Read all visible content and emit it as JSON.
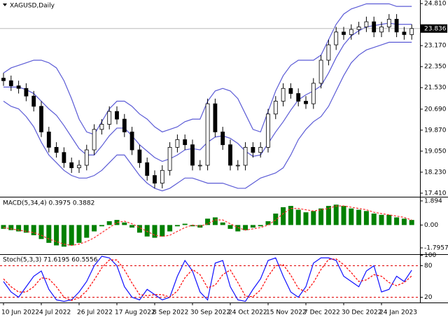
{
  "chart_data": [
    {
      "type": "candlestick",
      "title": "XAGUSD,Daily",
      "open": [
        21.9,
        21.8,
        21.6,
        21.5,
        21.2,
        20.8,
        19.8,
        19.2,
        19.0,
        18.6,
        18.4,
        18.5,
        19.1,
        19.9,
        20.1,
        20.6,
        20.3,
        19.8,
        19.1,
        18.6,
        18.1,
        17.8,
        18.3,
        19.2,
        19.5,
        19.3,
        18.5,
        18.5,
        20.9,
        19.8,
        19.3,
        18.5,
        18.5,
        19.2,
        19.0,
        19.2,
        20.5,
        21.0,
        21.5,
        21.3,
        21.0,
        20.9,
        21.7,
        22.6,
        23.2,
        23.7,
        23.6,
        23.8,
        23.9,
        24.1,
        23.7,
        23.9,
        24.2,
        23.7,
        23.6
      ],
      "high": [
        22.1,
        22.0,
        21.8,
        21.7,
        21.4,
        21.0,
        20.0,
        19.4,
        19.2,
        18.8,
        18.7,
        19.3,
        20.1,
        20.3,
        20.8,
        20.8,
        20.5,
        20.0,
        19.3,
        18.8,
        18.3,
        18.5,
        19.4,
        19.7,
        19.7,
        19.5,
        18.7,
        21.1,
        21.1,
        20.0,
        19.5,
        18.7,
        19.4,
        19.4,
        19.4,
        20.7,
        21.2,
        21.7,
        21.7,
        21.5,
        21.2,
        21.9,
        22.8,
        23.4,
        23.9,
        23.9,
        24.0,
        24.1,
        24.3,
        24.3,
        24.1,
        24.4,
        24.4,
        23.9,
        24.0
      ],
      "low": [
        21.6,
        21.4,
        21.3,
        21.0,
        20.6,
        19.6,
        19.0,
        18.8,
        18.4,
        18.2,
        18.2,
        18.3,
        18.9,
        19.7,
        19.9,
        20.1,
        19.6,
        18.9,
        18.4,
        17.9,
        17.6,
        17.6,
        18.1,
        19.0,
        19.1,
        18.3,
        18.3,
        18.3,
        19.6,
        19.1,
        18.3,
        18.3,
        18.3,
        18.8,
        18.8,
        19.0,
        20.3,
        20.8,
        21.1,
        20.8,
        20.7,
        20.7,
        21.5,
        22.4,
        23.0,
        23.4,
        23.4,
        23.6,
        23.7,
        23.5,
        23.5,
        23.7,
        23.5,
        23.4,
        23.4
      ],
      "close": [
        21.8,
        21.6,
        21.5,
        21.2,
        20.8,
        19.8,
        19.2,
        19.0,
        18.6,
        18.4,
        18.5,
        19.1,
        19.9,
        20.1,
        20.6,
        20.3,
        19.8,
        19.1,
        18.6,
        18.1,
        17.8,
        18.3,
        19.2,
        19.5,
        19.3,
        18.5,
        18.5,
        20.9,
        19.8,
        19.3,
        18.5,
        18.5,
        19.2,
        19.0,
        19.2,
        20.5,
        21.0,
        21.5,
        21.3,
        21.0,
        20.9,
        21.7,
        22.6,
        23.2,
        23.7,
        23.6,
        23.8,
        23.9,
        24.1,
        23.7,
        23.9,
        24.2,
        23.7,
        23.6,
        23.836
      ],
      "bands": {
        "color": "#5b5bd6",
        "upper": [
          22.1,
          22.3,
          22.4,
          22.5,
          22.6,
          22.6,
          22.5,
          22.3,
          21.8,
          21.1,
          20.3,
          19.8,
          19.7,
          20.2,
          20.7,
          21.0,
          21.0,
          20.8,
          20.5,
          20.3,
          20.0,
          19.8,
          19.9,
          20.0,
          20.2,
          20.3,
          20.3,
          21.0,
          21.4,
          21.5,
          21.4,
          21.1,
          20.5,
          19.9,
          19.8,
          20.6,
          21.4,
          22.0,
          22.4,
          22.6,
          22.6,
          22.6,
          22.8,
          23.4,
          24.0,
          24.4,
          24.6,
          24.7,
          24.8,
          24.8,
          24.8,
          24.8,
          24.7,
          24.7,
          24.7
        ],
        "middle": [
          21.55,
          21.55,
          21.55,
          21.45,
          21.3,
          21.0,
          20.7,
          20.45,
          20.05,
          19.6,
          19.15,
          18.9,
          18.9,
          19.25,
          19.65,
          19.95,
          19.95,
          19.65,
          19.3,
          19.05,
          18.8,
          18.65,
          18.75,
          18.9,
          19.1,
          19.15,
          19.1,
          19.4,
          19.6,
          19.65,
          19.55,
          19.35,
          19.05,
          18.85,
          18.9,
          19.35,
          19.8,
          20.2,
          20.65,
          21.05,
          21.25,
          21.4,
          21.6,
          22.1,
          22.7,
          23.2,
          23.55,
          23.75,
          23.9,
          23.95,
          24.0,
          24.05,
          24.0,
          24.0,
          24.0
        ],
        "lower": [
          21.0,
          20.8,
          20.7,
          20.4,
          20.0,
          19.4,
          18.9,
          18.6,
          18.3,
          18.1,
          18.0,
          18.0,
          18.1,
          18.3,
          18.6,
          18.9,
          18.9,
          18.5,
          18.1,
          17.8,
          17.6,
          17.5,
          17.6,
          17.8,
          18.0,
          18.0,
          17.9,
          17.8,
          17.8,
          17.8,
          17.7,
          17.6,
          17.6,
          17.8,
          18.0,
          18.1,
          18.2,
          18.4,
          18.9,
          19.5,
          19.9,
          20.2,
          20.4,
          20.8,
          21.4,
          22.0,
          22.5,
          22.8,
          23.0,
          23.1,
          23.2,
          23.3,
          23.3,
          23.3,
          23.3
        ]
      },
      "ylim": [
        17.27,
        24.95
      ],
      "yticks": [
        {
          "value": 24.81,
          "label": "24.810"
        },
        {
          "value": 23.17,
          "label": "23.170"
        },
        {
          "value": 22.35,
          "label": "22.350"
        },
        {
          "value": 21.53,
          "label": "21.530"
        },
        {
          "value": 20.69,
          "label": "20.690"
        },
        {
          "value": 19.87,
          "label": "19.870"
        },
        {
          "value": 19.05,
          "label": "19.050"
        },
        {
          "value": 18.23,
          "label": "18.230"
        },
        {
          "value": 17.41,
          "label": "17.410"
        }
      ]
    },
    {
      "type": "bar",
      "title": "MACD(5,34,4) 0.3975 0.3882",
      "color": "#008000",
      "values": [
        -0.3,
        -0.4,
        -0.5,
        -0.6,
        -0.8,
        -1.1,
        -1.4,
        -1.6,
        -1.7,
        -1.6,
        -1.4,
        -1.0,
        -0.5,
        -0.1,
        0.3,
        0.4,
        0.2,
        -0.2,
        -0.6,
        -0.9,
        -1.0,
        -0.9,
        -0.5,
        -0.1,
        0.1,
        -0.1,
        -0.2,
        0.5,
        0.6,
        0.2,
        -0.3,
        -0.5,
        -0.4,
        -0.2,
        -0.1,
        0.3,
        0.9,
        1.4,
        1.5,
        1.2,
        1.0,
        1.1,
        1.3,
        1.5,
        1.6,
        1.5,
        1.3,
        1.2,
        1.1,
        0.9,
        0.8,
        0.8,
        0.6,
        0.5,
        0.3975
      ],
      "signal": [
        -0.2,
        -0.3,
        -0.4,
        -0.5,
        -0.6,
        -0.8,
        -1.1,
        -1.3,
        -1.5,
        -1.6,
        -1.5,
        -1.3,
        -1.0,
        -0.6,
        -0.2,
        0.2,
        0.3,
        0.1,
        -0.2,
        -0.5,
        -0.8,
        -0.9,
        -0.8,
        -0.5,
        -0.2,
        0.0,
        -0.1,
        0.1,
        0.4,
        0.4,
        0.1,
        -0.2,
        -0.4,
        -0.3,
        -0.2,
        0.0,
        0.4,
        0.9,
        1.3,
        1.3,
        1.2,
        1.1,
        1.2,
        1.3,
        1.5,
        1.5,
        1.4,
        1.3,
        1.2,
        1.0,
        0.9,
        0.8,
        0.7,
        0.6,
        0.3882
      ],
      "signal_color": "#ff3030",
      "ylim": [
        -2.29,
        2.11
      ],
      "yticks": [
        1.894,
        {
          "value": 0,
          "label": "0.00"
        },
        -1.7957
      ]
    },
    {
      "type": "line",
      "title": "Stoch(5,3,3) 71.6195 60.5556",
      "x": [
        "10 Jun 2022",
        null,
        null,
        null,
        null,
        "4 Jul 2022",
        null,
        null,
        null,
        null,
        "26 Jul 2022",
        null,
        null,
        null,
        null,
        "17 Aug 2022",
        null,
        null,
        null,
        null,
        "8 Sep 2022",
        null,
        null,
        null,
        null,
        "30 Sep 2022",
        null,
        null,
        null,
        null,
        "24 Oct 2022",
        null,
        null,
        null,
        null,
        "15 Nov 2022",
        null,
        null,
        null,
        null,
        "7 Dec 2022",
        null,
        null,
        null,
        null,
        "30 Dec 2022",
        null,
        null,
        null,
        null,
        "24 Jan 2023",
        null,
        null,
        null,
        null
      ],
      "main": [
        50,
        30,
        20,
        40,
        60,
        70,
        35,
        15,
        12,
        15,
        30,
        50,
        80,
        98,
        95,
        80,
        40,
        20,
        15,
        35,
        25,
        15,
        20,
        60,
        90,
        70,
        30,
        15,
        85,
        90,
        40,
        15,
        12,
        35,
        55,
        90,
        95,
        60,
        30,
        20,
        40,
        85,
        95,
        95,
        90,
        60,
        50,
        40,
        70,
        80,
        30,
        35,
        60,
        50,
        71.6195
      ],
      "main_color": "#1010ff",
      "signal": [
        55,
        40,
        30,
        30,
        40,
        57,
        55,
        40,
        20,
        14,
        19,
        32,
        53,
        76,
        91,
        91,
        72,
        47,
        25,
        23,
        25,
        25,
        20,
        32,
        57,
        73,
        63,
        38,
        43,
        63,
        72,
        48,
        22,
        21,
        34,
        60,
        80,
        82,
        62,
        37,
        30,
        48,
        73,
        92,
        93,
        82,
        67,
        50,
        53,
        63,
        60,
        48,
        42,
        48,
        60.5556
      ],
      "signal_color": "#ff0000",
      "levels": [
        80,
        20
      ],
      "ylim": [
        10,
        102
      ],
      "yticks": [
        100,
        80,
        20
      ]
    }
  ]
}
